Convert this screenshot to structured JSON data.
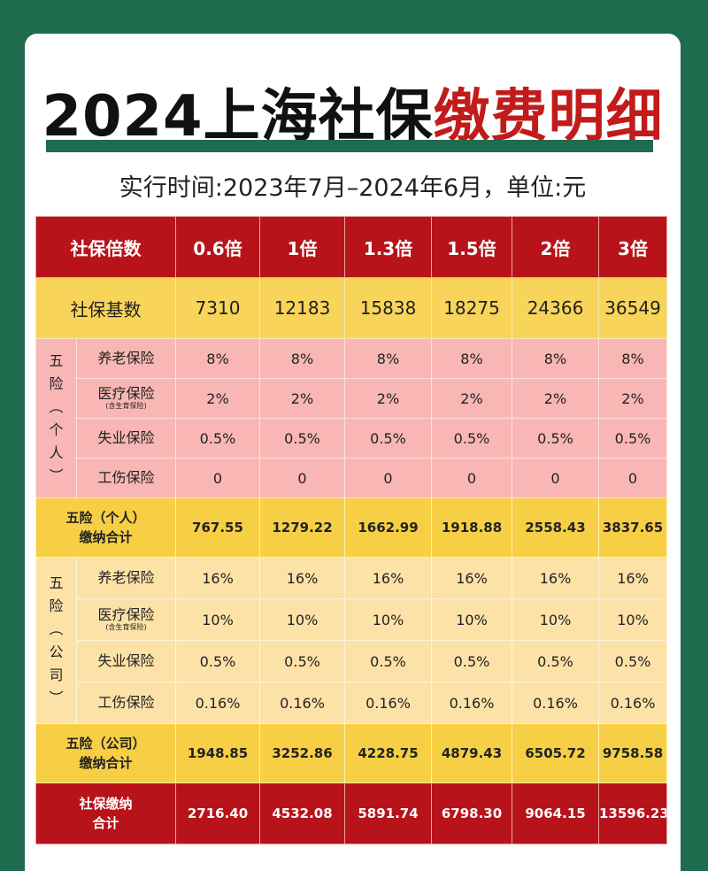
{
  "title": {
    "part1": "2024上海社保",
    "part2": "缴费明细"
  },
  "subtitle": "实行时间:2023年7月–2024年6月，单位:元",
  "header": {
    "label": "社保倍数",
    "multiples": [
      "0.6倍",
      "1倍",
      "1.3倍",
      "1.5倍",
      "2倍",
      "3倍"
    ]
  },
  "base": {
    "label": "社保基数",
    "values": [
      "7310",
      "12183",
      "15838",
      "18275",
      "24366",
      "36549"
    ]
  },
  "personal": {
    "group_chars": [
      "五",
      "险",
      "︵",
      "个",
      "人",
      "︶"
    ],
    "items": [
      {
        "name": "养老保险",
        "note": "",
        "values": [
          "8%",
          "8%",
          "8%",
          "8%",
          "8%",
          "8%"
        ]
      },
      {
        "name": "医疗保险",
        "note": "(含生育保险)",
        "values": [
          "2%",
          "2%",
          "2%",
          "2%",
          "2%",
          "2%"
        ]
      },
      {
        "name": "失业保险",
        "note": "",
        "values": [
          "0.5%",
          "0.5%",
          "0.5%",
          "0.5%",
          "0.5%",
          "0.5%"
        ]
      },
      {
        "name": "工伤保险",
        "note": "",
        "values": [
          "0",
          "0",
          "0",
          "0",
          "0",
          "0"
        ]
      }
    ],
    "sum_label1": "五险（个人）",
    "sum_label2": "缴纳合计",
    "sum_values": [
      "767.55",
      "1279.22",
      "1662.99",
      "1918.88",
      "2558.43",
      "3837.65"
    ]
  },
  "company": {
    "group_chars": [
      "五",
      "险",
      "︵",
      "公",
      "司",
      "︶"
    ],
    "items": [
      {
        "name": "养老保险",
        "note": "",
        "values": [
          "16%",
          "16%",
          "16%",
          "16%",
          "16%",
          "16%"
        ]
      },
      {
        "name": "医疗保险",
        "note": "(含生育保险)",
        "values": [
          "10%",
          "10%",
          "10%",
          "10%",
          "10%",
          "10%"
        ]
      },
      {
        "name": "失业保险",
        "note": "",
        "values": [
          "0.5%",
          "0.5%",
          "0.5%",
          "0.5%",
          "0.5%",
          "0.5%"
        ]
      },
      {
        "name": "工伤保险",
        "note": "",
        "values": [
          "0.16%",
          "0.16%",
          "0.16%",
          "0.16%",
          "0.16%",
          "0.16%"
        ]
      }
    ],
    "sum_label1": "五险（公司）",
    "sum_label2": "缴纳合计",
    "sum_values": [
      "1948.85",
      "3252.86",
      "4228.75",
      "4879.43",
      "6505.72",
      "9758.58"
    ]
  },
  "total": {
    "label1": "社保缴纳",
    "label2": "合计",
    "values": [
      "2716.40",
      "4532.08",
      "5891.74",
      "6798.30",
      "9064.15",
      "13596.23"
    ]
  }
}
